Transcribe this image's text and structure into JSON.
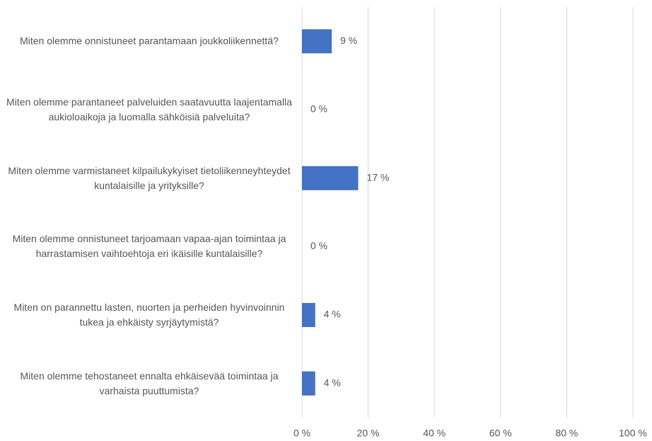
{
  "chart_data": {
    "type": "bar",
    "orientation": "horizontal",
    "categories": [
      "Miten olemme onnistuneet parantamaan joukkoliikennettä?",
      "Miten olemme parantaneet palveluiden saatavuutta laajentamalla aukioloaikoja ja luomalla sähköisiä palveluita?",
      "Miten olemme varmistaneet kilpailukykyiset tietoliikenneyhteydet kuntalaisille ja yrityksille?",
      "Miten olemme onnistuneet tarjoamaan vapaa-ajan toimintaa ja harrastamisen vaihtoehtoja eri ikäisille kuntalaisille?",
      "Miten on parannettu lasten, nuorten ja perheiden hyvinvoinnin tukea ja ehkäisty syrjäytymistä?",
      "Miten olemme tehostaneet ennalta ehkäisevää toimintaa ja varhaista puuttumista?"
    ],
    "values": [
      9,
      0,
      17,
      0,
      4,
      4
    ],
    "value_labels": [
      "9 %",
      "0 %",
      "17 %",
      "0 %",
      "4 %",
      "4 %"
    ],
    "color": "#4472c4",
    "xlim": [
      0,
      100
    ],
    "xticks": [
      {
        "value": 0,
        "label": "0 %"
      },
      {
        "value": 20,
        "label": "20 %"
      },
      {
        "value": 40,
        "label": "40 %"
      },
      {
        "value": 60,
        "label": "60 %"
      },
      {
        "value": 80,
        "label": "80 %"
      },
      {
        "value": 100,
        "label": "100 %"
      }
    ],
    "grid": true
  }
}
